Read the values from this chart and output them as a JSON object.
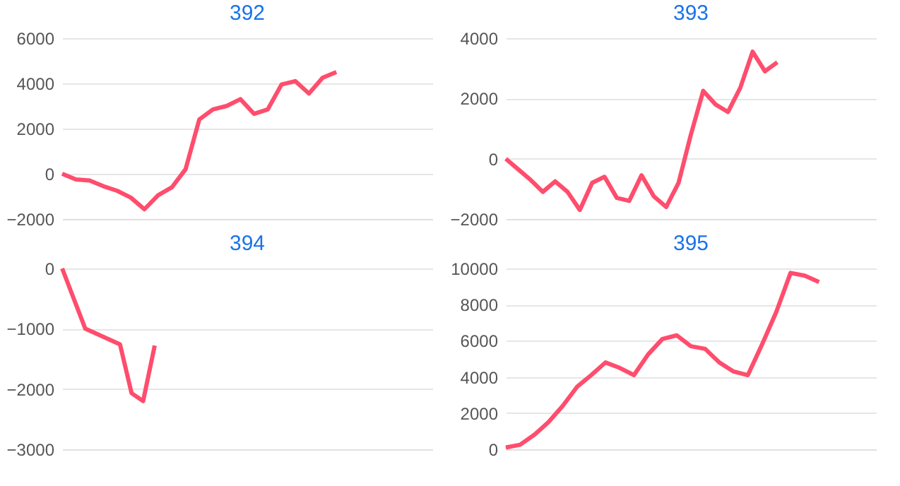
{
  "chart_data": [
    {
      "type": "line",
      "title": "392",
      "color": "#ff4d6d",
      "grid": "y",
      "tick_labels": "y",
      "categories": [
        null,
        null,
        null,
        null,
        null,
        null,
        null,
        null,
        null,
        null,
        null,
        null,
        null,
        null,
        null,
        null,
        null,
        null,
        null,
        null,
        null,
        null,
        null,
        null,
        null,
        null,
        null,
        null
      ],
      "values": [
        0,
        -250,
        -300,
        -550,
        -750,
        -1050,
        -1570,
        -950,
        -600,
        200,
        2400,
        2850,
        3000,
        3300,
        2650,
        2850,
        3950,
        4100,
        3550,
        4250,
        4500,
        null,
        null,
        null,
        null,
        null,
        null,
        null
      ],
      "ylim": [
        -2000,
        6000
      ],
      "yticks": [
        -2000,
        0,
        2000,
        4000,
        6000
      ]
    },
    {
      "type": "line",
      "title": "393",
      "color": "#ff4d6d",
      "grid": "y",
      "tick_labels": "y",
      "categories": [
        null,
        null,
        null,
        null,
        null,
        null,
        null,
        null,
        null,
        null,
        null,
        null,
        null,
        null,
        null,
        null,
        null,
        null,
        null,
        null,
        null,
        null,
        null,
        null,
        null,
        null,
        null,
        null,
        null,
        null,
        null
      ],
      "values": [
        0,
        -350,
        -700,
        -1100,
        -750,
        -1100,
        -1700,
        -800,
        -600,
        -1300,
        -1400,
        -550,
        -1250,
        -1600,
        -800,
        800,
        2250,
        1800,
        1550,
        2350,
        3550,
        2900,
        3200,
        null,
        null,
        null,
        null,
        null,
        null,
        null,
        null
      ],
      "ylim": [
        -2000,
        4000
      ],
      "yticks": [
        -2000,
        0,
        2000,
        4000
      ]
    },
    {
      "type": "line",
      "title": "394",
      "color": "#ff4d6d",
      "grid": "y",
      "tick_labels": "y",
      "categories": [
        null,
        null,
        null,
        null,
        null,
        null,
        null,
        null,
        null,
        null,
        null,
        null,
        null,
        null,
        null,
        null,
        null,
        null,
        null,
        null,
        null,
        null,
        null,
        null,
        null,
        null,
        null,
        null,
        null,
        null,
        null,
        null,
        null
      ],
      "values": [
        0,
        null,
        -1000,
        null,
        null,
        -1260,
        -2070,
        -2200,
        -1280,
        null,
        null,
        null,
        null,
        null,
        null,
        null,
        null,
        null,
        null,
        null,
        null,
        null,
        null,
        null,
        null,
        null,
        null,
        null,
        null,
        null,
        null,
        null,
        null
      ],
      "ylim": [
        -3000,
        0
      ],
      "yticks": [
        -3000,
        -2000,
        -1000,
        0
      ]
    },
    {
      "type": "line",
      "title": "395",
      "color": "#ff4d6d",
      "grid": "y",
      "tick_labels": "y",
      "categories": [
        null,
        null,
        null,
        null,
        null,
        null,
        null,
        null,
        null,
        null,
        null,
        null,
        null,
        null,
        null,
        null,
        null,
        null,
        null,
        null,
        null,
        null,
        null,
        null,
        null,
        null,
        null
      ],
      "values": [
        100,
        250,
        800,
        1500,
        2400,
        3450,
        4100,
        4800,
        4500,
        4100,
        5250,
        6100,
        6300,
        5700,
        5550,
        4800,
        4300,
        4100,
        5800,
        7600,
        9750,
        9600,
        9250,
        null,
        null,
        null,
        null
      ],
      "ylim": [
        0,
        10000
      ],
      "yticks": [
        0,
        2000,
        4000,
        6000,
        8000,
        10000
      ]
    }
  ]
}
